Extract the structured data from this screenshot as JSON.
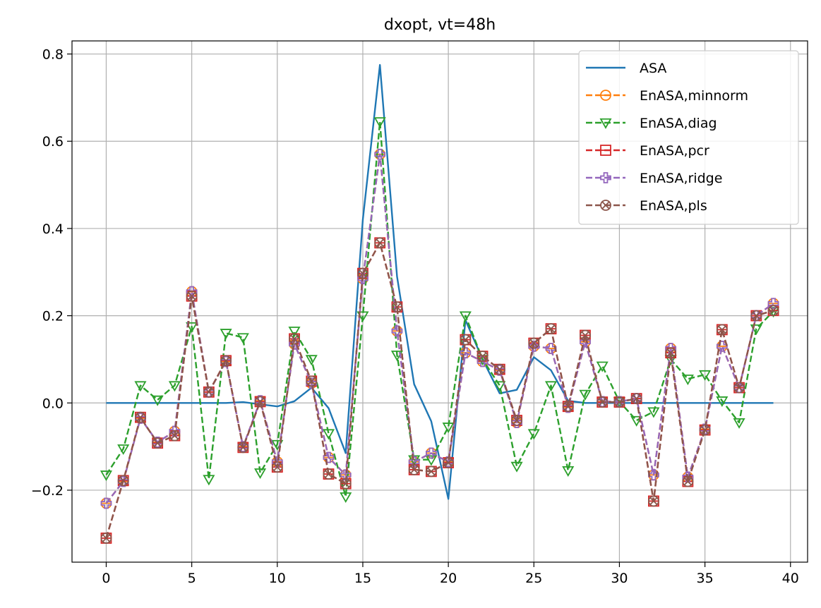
{
  "chart_data": {
    "type": "line",
    "title": "dxopt, vt=48h",
    "xlabel": "",
    "ylabel": "",
    "xlim": [
      -2,
      41
    ],
    "ylim": [
      -0.365,
      0.83
    ],
    "xticks": [
      0,
      5,
      10,
      15,
      20,
      25,
      30,
      35,
      40
    ],
    "xtick_labels": [
      "0",
      "5",
      "10",
      "15",
      "20",
      "25",
      "30",
      "35",
      "40"
    ],
    "yticks": [
      -0.2,
      0.0,
      0.2,
      0.4,
      0.6,
      0.8
    ],
    "ytick_labels": [
      "−0.2",
      "0.0",
      "0.2",
      "0.4",
      "0.6",
      "0.8"
    ],
    "grid": true,
    "legend_position": "top-right",
    "x": [
      0,
      1,
      2,
      3,
      4,
      5,
      6,
      7,
      8,
      9,
      10,
      11,
      12,
      13,
      14,
      15,
      16,
      17,
      18,
      19,
      20,
      21,
      22,
      23,
      24,
      25,
      26,
      27,
      28,
      29,
      30,
      31,
      32,
      33,
      34,
      35,
      36,
      37,
      38,
      39
    ],
    "series": [
      {
        "name": "ASA",
        "color": "#1f77b4",
        "style": "solid",
        "marker": "none",
        "values": [
          0,
          0,
          0,
          0,
          0,
          0,
          0,
          0,
          0.002,
          -0.003,
          -0.008,
          0.004,
          0.035,
          -0.012,
          -0.115,
          0.42,
          0.775,
          0.29,
          0.043,
          -0.042,
          -0.22,
          0.19,
          0.1,
          0.022,
          0.03,
          0.105,
          0.075,
          0.005,
          0,
          0,
          0,
          0,
          0,
          0,
          0,
          0,
          0,
          0,
          0,
          0
        ]
      },
      {
        "name": "EnASA,minnorm",
        "color": "#ff7f0e",
        "style": "dashed",
        "marker": "circle-minus",
        "values": [
          -0.23,
          -0.18,
          -0.035,
          -0.09,
          -0.065,
          0.255,
          0.025,
          0.095,
          -0.1,
          0.005,
          -0.135,
          0.135,
          0.045,
          -0.125,
          -0.165,
          0.285,
          0.57,
          0.165,
          -0.135,
          -0.115,
          -0.135,
          0.115,
          0.095,
          0.075,
          -0.045,
          0.13,
          0.125,
          -0.01,
          0.14,
          0.003,
          0.003,
          0.01,
          -0.165,
          0.125,
          -0.17,
          -0.06,
          0.13,
          0.035,
          0.2,
          0.228
        ]
      },
      {
        "name": "EnASA,diag",
        "color": "#2ca02c",
        "style": "dashed",
        "marker": "triangle-down",
        "values": [
          -0.165,
          -0.105,
          0.04,
          0.007,
          0.04,
          0.175,
          -0.175,
          0.16,
          0.15,
          -0.16,
          -0.095,
          0.165,
          0.1,
          -0.07,
          -0.215,
          0.2,
          0.645,
          0.11,
          -0.13,
          -0.13,
          -0.055,
          0.2,
          0.1,
          0.04,
          -0.145,
          -0.07,
          0.04,
          -0.155,
          0.02,
          0.085,
          0.003,
          -0.04,
          -0.02,
          0.1,
          0.055,
          0.065,
          0.005,
          -0.045,
          0.17,
          0.21
        ]
      },
      {
        "name": "EnASA,pcr",
        "color": "#d62728",
        "style": "dashed",
        "marker": "square-minus",
        "values": [
          -0.31,
          -0.178,
          -0.033,
          -0.092,
          -0.075,
          0.245,
          0.025,
          0.097,
          -0.102,
          0.003,
          -0.147,
          0.147,
          0.05,
          -0.163,
          -0.185,
          0.297,
          0.367,
          0.22,
          -0.153,
          -0.157,
          -0.137,
          0.145,
          0.107,
          0.077,
          -0.04,
          0.137,
          0.17,
          -0.008,
          0.155,
          0.002,
          0.002,
          0.01,
          -0.225,
          0.115,
          -0.18,
          -0.062,
          0.168,
          0.035,
          0.2,
          0.212
        ]
      },
      {
        "name": "EnASA,ridge",
        "color": "#9467bd",
        "style": "dashed",
        "marker": "plus-box",
        "values": [
          -0.23,
          -0.18,
          -0.035,
          -0.09,
          -0.065,
          0.255,
          0.025,
          0.095,
          -0.1,
          0.005,
          -0.135,
          0.135,
          0.045,
          -0.125,
          -0.165,
          0.285,
          0.57,
          0.165,
          -0.135,
          -0.115,
          -0.135,
          0.115,
          0.095,
          0.075,
          -0.045,
          0.13,
          0.125,
          -0.01,
          0.14,
          0.003,
          0.003,
          0.01,
          -0.165,
          0.125,
          -0.17,
          -0.06,
          0.13,
          0.035,
          0.2,
          0.228
        ]
      },
      {
        "name": "EnASA,pls",
        "color": "#8c564b",
        "style": "dashed",
        "marker": "circle-x",
        "values": [
          -0.31,
          -0.178,
          -0.033,
          -0.092,
          -0.075,
          0.245,
          0.025,
          0.097,
          -0.102,
          0.003,
          -0.147,
          0.147,
          0.05,
          -0.163,
          -0.185,
          0.297,
          0.367,
          0.22,
          -0.153,
          -0.157,
          -0.137,
          0.145,
          0.107,
          0.077,
          -0.04,
          0.137,
          0.17,
          -0.008,
          0.155,
          0.002,
          0.002,
          0.01,
          -0.225,
          0.115,
          -0.18,
          -0.062,
          0.168,
          0.035,
          0.2,
          0.212
        ]
      }
    ]
  }
}
